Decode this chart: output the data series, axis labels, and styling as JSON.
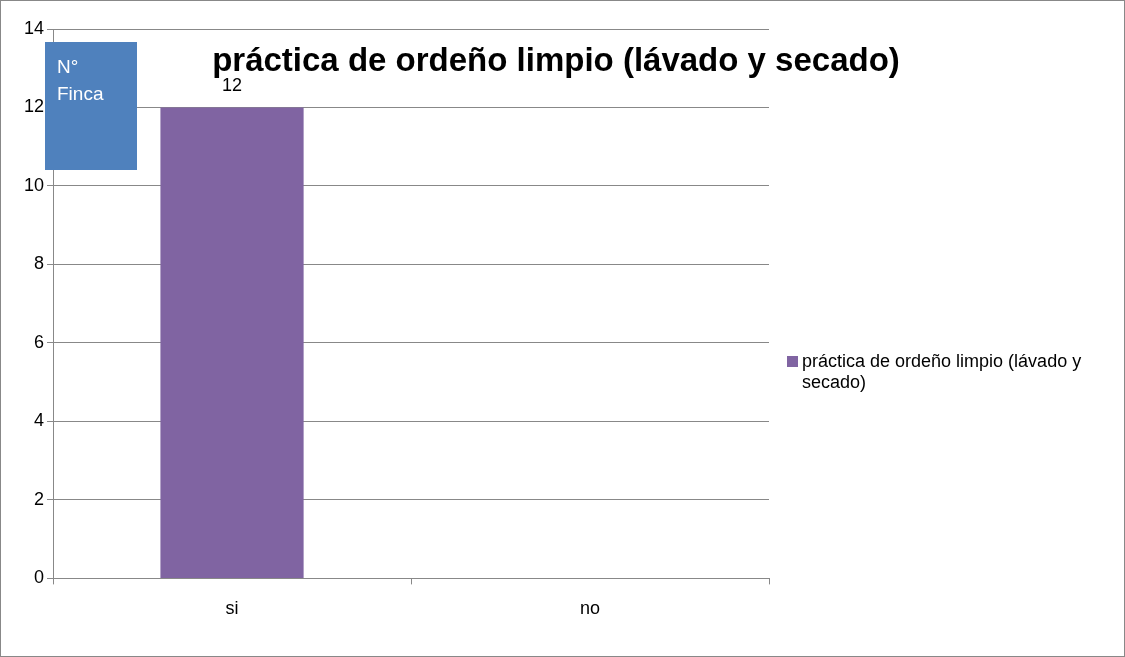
{
  "chart_data": {
    "type": "bar",
    "title": "práctica de ordeño limpio (lávado y secado)",
    "ylabel": "N° Finca",
    "categories": [
      "si",
      "no"
    ],
    "series": [
      {
        "name": "práctica de ordeño limpio (lávado y secado)",
        "color": "#8064a2",
        "values": [
          12,
          0
        ],
        "value_labels": [
          "12",
          null
        ]
      }
    ],
    "ylim": [
      0,
      14
    ],
    "yticks": [
      0,
      2,
      4,
      6,
      8,
      10,
      12,
      14
    ],
    "grid": "y",
    "legend": "right"
  }
}
